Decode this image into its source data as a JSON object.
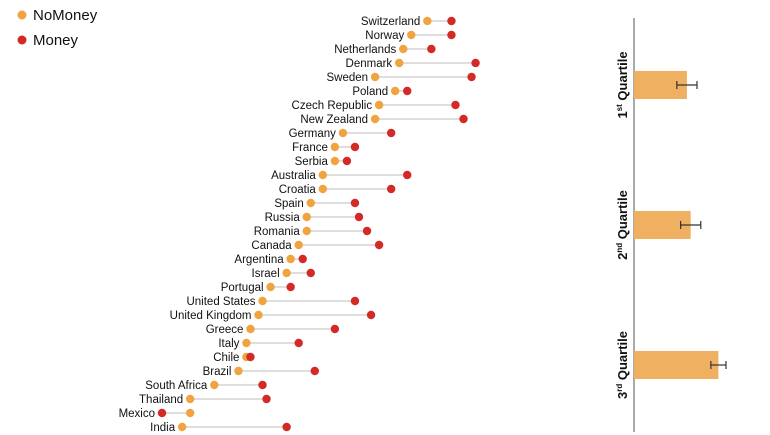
{
  "chart_data": [
    {
      "type": "dumbbell",
      "title": "",
      "legend": [
        {
          "name": "NoMoney",
          "color": "#f0a440"
        },
        {
          "name": "Money",
          "color": "#d42a26"
        }
      ],
      "x_range": [
        0,
        100
      ],
      "countries": [
        {
          "name": "Switzerland",
          "nomoney": 67,
          "money": 73
        },
        {
          "name": "Norway",
          "nomoney": 63,
          "money": 73
        },
        {
          "name": "Netherlands",
          "nomoney": 61,
          "money": 68
        },
        {
          "name": "Denmark",
          "nomoney": 60,
          "money": 79
        },
        {
          "name": "Sweden",
          "nomoney": 54,
          "money": 78
        },
        {
          "name": "Poland",
          "nomoney": 59,
          "money": 62
        },
        {
          "name": "Czech Republic",
          "nomoney": 55,
          "money": 74
        },
        {
          "name": "New Zealand",
          "nomoney": 54,
          "money": 76
        },
        {
          "name": "Germany",
          "nomoney": 46,
          "money": 58
        },
        {
          "name": "France",
          "nomoney": 44,
          "money": 49
        },
        {
          "name": "Serbia",
          "nomoney": 44,
          "money": 47
        },
        {
          "name": "Australia",
          "nomoney": 41,
          "money": 62
        },
        {
          "name": "Croatia",
          "nomoney": 41,
          "money": 58
        },
        {
          "name": "Spain",
          "nomoney": 38,
          "money": 49
        },
        {
          "name": "Russia",
          "nomoney": 37,
          "money": 50
        },
        {
          "name": "Romania",
          "nomoney": 37,
          "money": 52
        },
        {
          "name": "Canada",
          "nomoney": 35,
          "money": 55
        },
        {
          "name": "Argentina",
          "nomoney": 33,
          "money": 36
        },
        {
          "name": "Israel",
          "nomoney": 32,
          "money": 38
        },
        {
          "name": "Portugal",
          "nomoney": 28,
          "money": 33
        },
        {
          "name": "United States",
          "nomoney": 26,
          "money": 49
        },
        {
          "name": "United Kingdom",
          "nomoney": 25,
          "money": 53
        },
        {
          "name": "Greece",
          "nomoney": 23,
          "money": 44
        },
        {
          "name": "Italy",
          "nomoney": 22,
          "money": 35
        },
        {
          "name": "Chile",
          "nomoney": 22,
          "money": 23
        },
        {
          "name": "Brazil",
          "nomoney": 20,
          "money": 39
        },
        {
          "name": "South Africa",
          "nomoney": 14,
          "money": 26
        },
        {
          "name": "Thailand",
          "nomoney": 8,
          "money": 27
        },
        {
          "name": "Mexico",
          "nomoney": 8,
          "money": 1
        },
        {
          "name": "India",
          "nomoney": 6,
          "money": 32
        }
      ]
    },
    {
      "type": "bar",
      "orientation": "horizontal",
      "categories": [
        "1st Quartile",
        "2nd Quartile",
        "3rd Quartile"
      ],
      "labels": [
        {
          "num": "1",
          "sup": "st",
          "word": "Quartile"
        },
        {
          "num": "2",
          "sup": "nd",
          "word": "Quartile"
        },
        {
          "num": "3",
          "sup": "rd",
          "word": "Quartile"
        }
      ],
      "values": [
        42,
        45,
        67
      ],
      "errors": [
        8,
        8,
        6
      ],
      "bar_color": "#f0b062",
      "x_range": [
        0,
        100
      ]
    }
  ]
}
